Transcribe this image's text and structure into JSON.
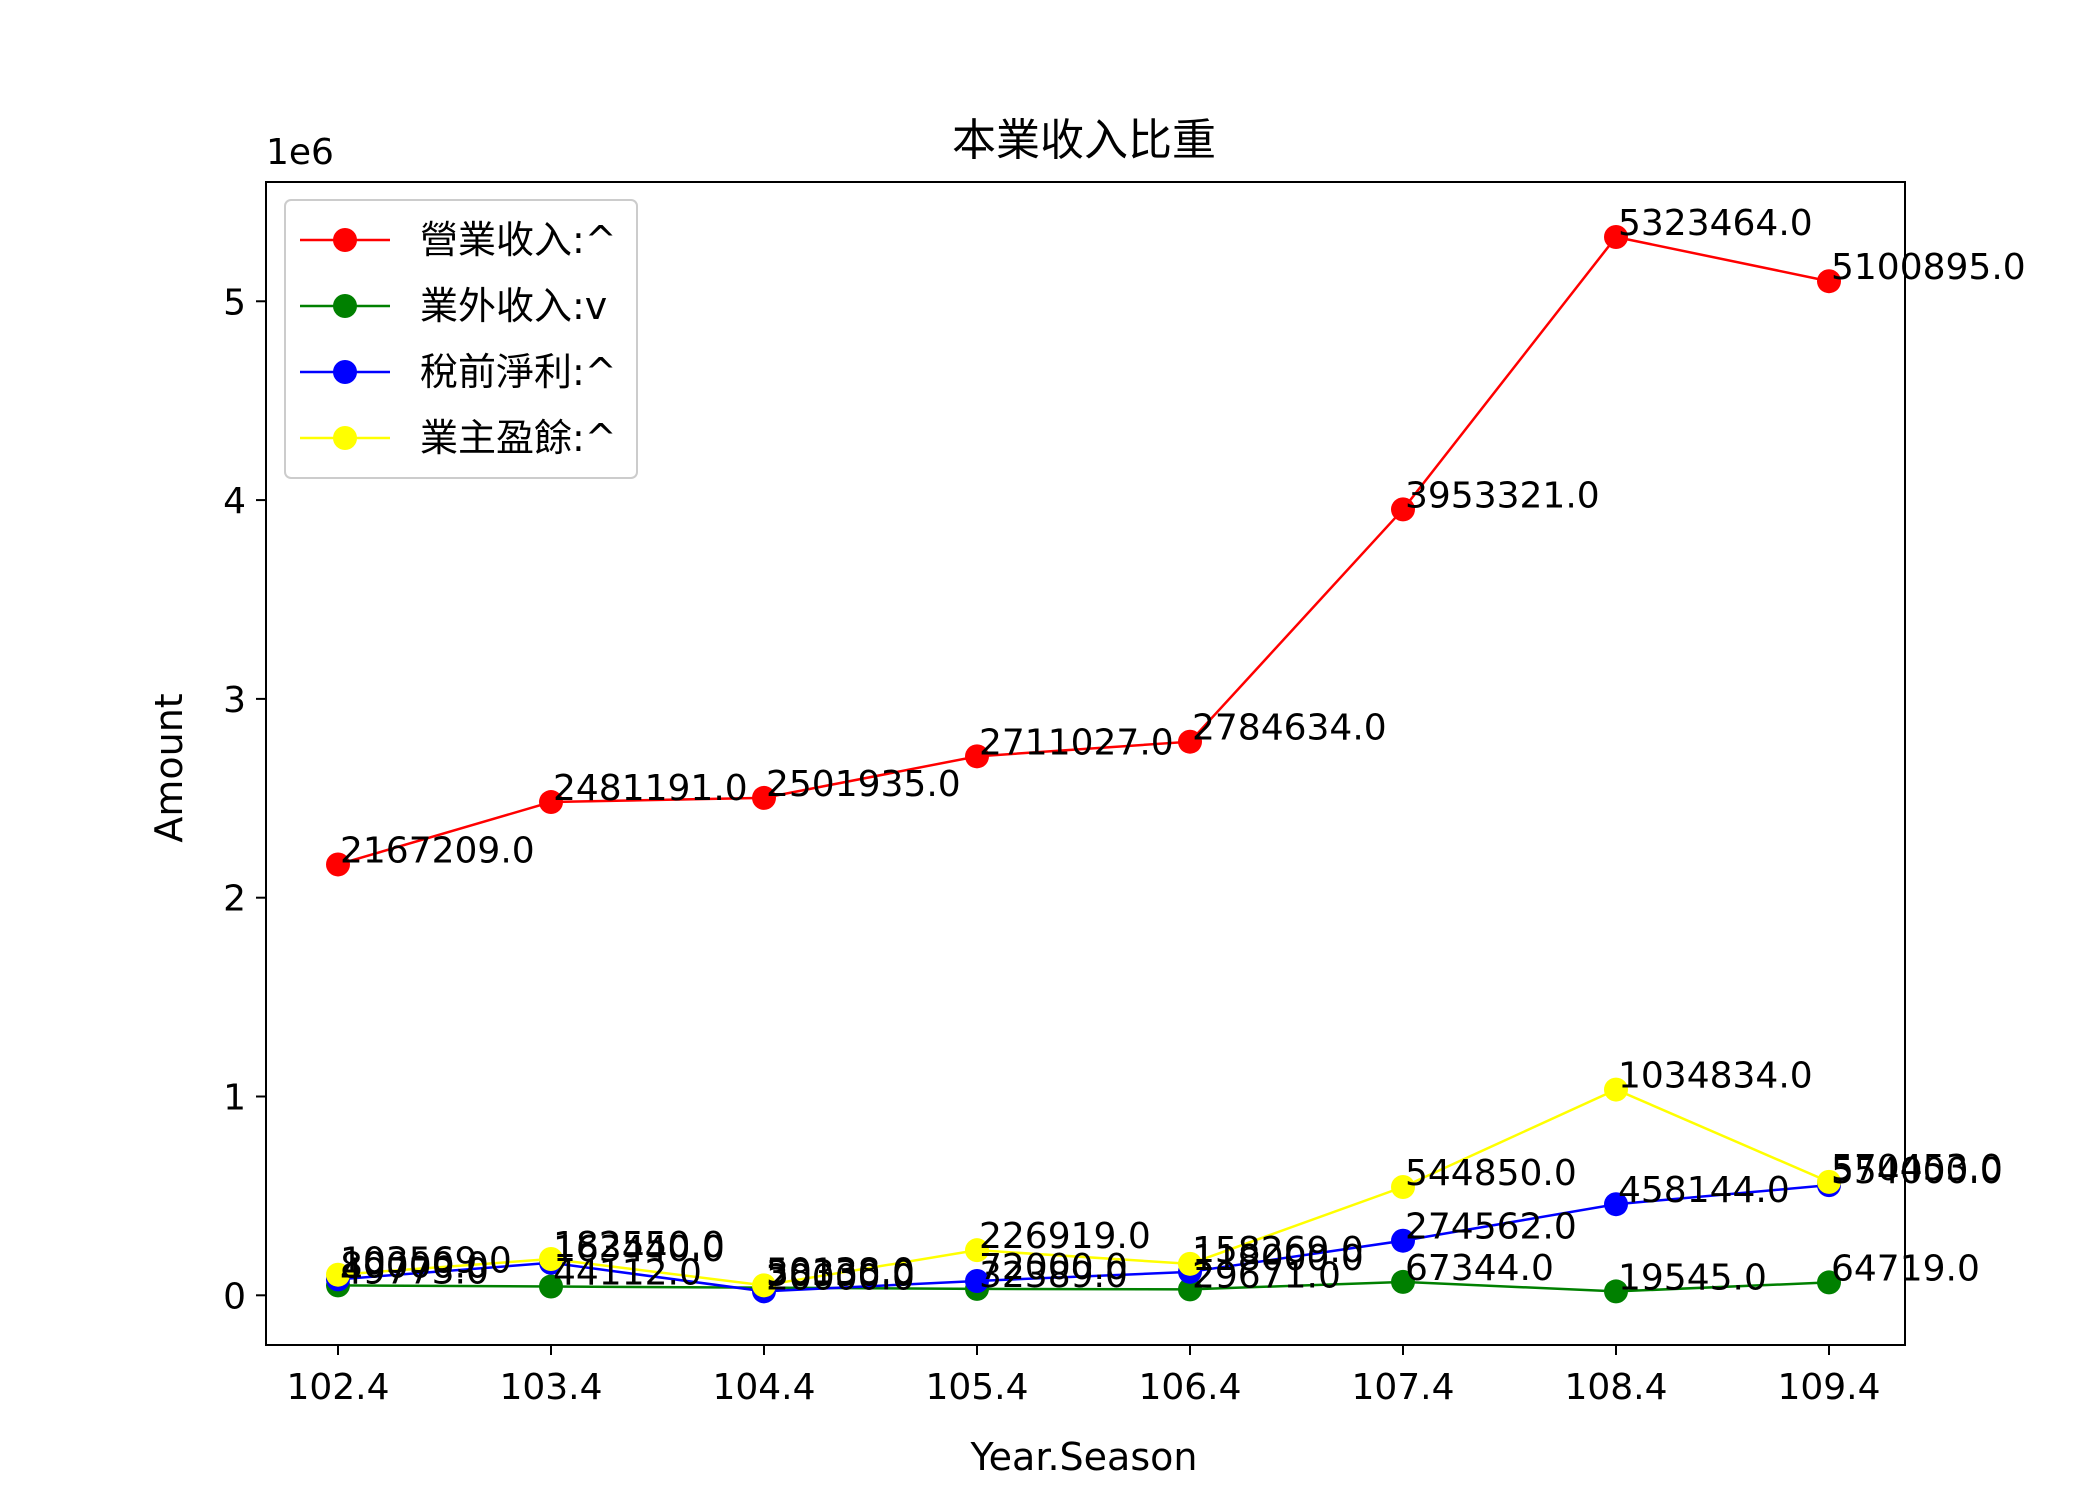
{
  "chart_data": {
    "type": "line",
    "title": "本業收入比重",
    "xlabel": "Year.Season",
    "ylabel": "Amount",
    "y_scale_label": "1e6",
    "categories": [
      "102.4",
      "103.4",
      "104.4",
      "105.4",
      "106.4",
      "107.4",
      "108.4",
      "109.4"
    ],
    "ylim": [
      -250000,
      5600000
    ],
    "yticks": [
      0,
      1,
      2,
      3,
      4,
      5
    ],
    "grid": false,
    "legend_position": "top-left",
    "series": [
      {
        "name": "營業收入:^",
        "color": "#ff0000",
        "values": [
          2167209,
          2481191,
          2501935,
          2711027,
          2784634,
          3953321,
          5323464,
          5100895
        ],
        "labels": [
          "2167209.0",
          "2481191.0",
          "2501935.0",
          "2711027.0",
          "2784634.0",
          "3953321.0",
          "5323464.0",
          "5100895.0"
        ]
      },
      {
        "name": "業外收入:v",
        "color": "#008000",
        "values": [
          49773,
          44112,
          38330,
          32389,
          29671,
          67344,
          19545,
          64719
        ],
        "labels": [
          "49773.0",
          "44112.0",
          "38330.0",
          "32389.0",
          "29671.0",
          "67344.0",
          "19545.0",
          "64719.0"
        ]
      },
      {
        "name": "稅前淨利:^",
        "color": "#0000ff",
        "values": [
          80000,
          163440,
          20000,
          72000,
          118000,
          274562,
          458144,
          554000
        ],
        "labels": [
          "80000.0",
          "163440.0",
          "20000.0",
          "72000.0",
          "118000.0",
          "274562.0",
          "458144.0",
          "554000.0"
        ]
      },
      {
        "name": "業主盈餘:^",
        "color": "#ffff00",
        "values": [
          103569,
          182550,
          50138,
          226919,
          158269,
          544850,
          1034834,
          570453
        ],
        "labels": [
          "103569.0",
          "182550.0",
          "50138.0",
          "226919.0",
          "158269.0",
          "544850.0",
          "1034834.0",
          "570453.0"
        ]
      }
    ]
  }
}
